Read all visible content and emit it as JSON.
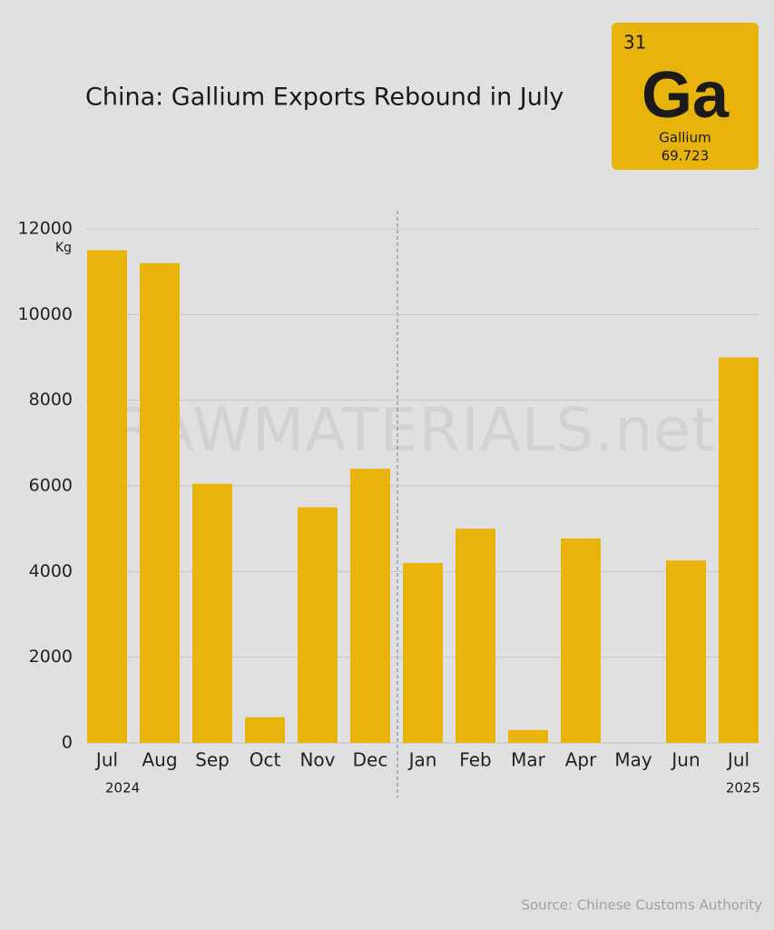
{
  "chart_data": {
    "type": "bar",
    "title": "China: Gallium Exports Rebound in July",
    "y_unit": "Kg",
    "categories": [
      "Jul",
      "Aug",
      "Sep",
      "Oct",
      "Nov",
      "Dec",
      "Jan",
      "Feb",
      "Mar",
      "Apr",
      "May",
      "Jun",
      "Jul"
    ],
    "values": [
      11500,
      11200,
      6050,
      600,
      5500,
      6400,
      4200,
      5000,
      300,
      4770,
      0,
      4260,
      9000
    ],
    "color": "#e8b30b",
    "ylim": [
      0,
      12000
    ],
    "yticks": [
      0,
      2000,
      4000,
      6000,
      8000,
      10000,
      12000
    ],
    "grid": true,
    "year_labels": [
      "2024",
      "2025"
    ],
    "watermark": "RAWMATERIALS.net",
    "source": "Source: Chinese Customs Authority",
    "badge": {
      "number": "31",
      "symbol": "Ga",
      "name": "Gallium",
      "mass": "69.723"
    }
  }
}
